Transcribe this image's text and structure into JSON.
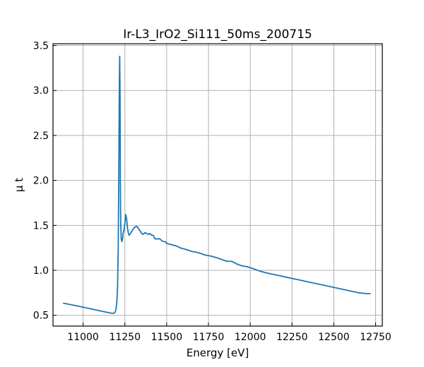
{
  "chart_data": {
    "type": "line",
    "title": "Ir-L3_IrO2_Si111_50ms_200715",
    "xlabel": "Energy [eV]",
    "ylabel": "μ t",
    "xlim": [
      10820,
      12790
    ],
    "ylim": [
      0.38,
      3.52
    ],
    "xticks": [
      11000,
      11250,
      11500,
      11750,
      12000,
      12250,
      12500,
      12750
    ],
    "yticks": [
      0.5,
      1.0,
      1.5,
      2.0,
      2.5,
      3.0,
      3.5
    ],
    "grid": true,
    "series": [
      {
        "name": "",
        "color": "#1f77b4",
        "x": [
          10880,
          10950,
          11000,
          11050,
          11100,
          11150,
          11175,
          11185,
          11192,
          11197,
          11202,
          11206,
          11210,
          11213,
          11215,
          11217,
          11219,
          11221,
          11223,
          11225,
          11228,
          11232,
          11236,
          11240,
          11245,
          11250,
          11255,
          11260,
          11265,
          11270,
          11275,
          11280,
          11290,
          11300,
          11310,
          11320,
          11330,
          11340,
          11350,
          11360,
          11370,
          11380,
          11390,
          11400,
          11410,
          11420,
          11430,
          11440,
          11450,
          11460,
          11470,
          11480,
          11490,
          11500,
          11520,
          11540,
          11560,
          11580,
          11600,
          11620,
          11650,
          11680,
          11700,
          11730,
          11760,
          11780,
          11800,
          11830,
          11860,
          11890,
          11920,
          11950,
          11980,
          12000,
          12030,
          12060,
          12100,
          12150,
          12200,
          12250,
          12300,
          12350,
          12400,
          12450,
          12500,
          12550,
          12600,
          12650,
          12700,
          12720
        ],
        "y": [
          0.635,
          0.61,
          0.59,
          0.57,
          0.55,
          0.53,
          0.522,
          0.523,
          0.535,
          0.57,
          0.65,
          0.8,
          1.2,
          1.9,
          2.5,
          3.1,
          3.38,
          3.0,
          2.0,
          1.55,
          1.35,
          1.32,
          1.35,
          1.42,
          1.45,
          1.52,
          1.62,
          1.58,
          1.48,
          1.42,
          1.39,
          1.4,
          1.43,
          1.46,
          1.48,
          1.49,
          1.47,
          1.44,
          1.41,
          1.4,
          1.42,
          1.41,
          1.4,
          1.41,
          1.39,
          1.39,
          1.35,
          1.35,
          1.35,
          1.35,
          1.33,
          1.32,
          1.32,
          1.3,
          1.29,
          1.28,
          1.27,
          1.25,
          1.24,
          1.23,
          1.21,
          1.2,
          1.19,
          1.17,
          1.16,
          1.15,
          1.14,
          1.12,
          1.1,
          1.1,
          1.07,
          1.05,
          1.04,
          1.03,
          1.01,
          0.99,
          0.97,
          0.95,
          0.93,
          0.91,
          0.89,
          0.87,
          0.85,
          0.83,
          0.81,
          0.79,
          0.77,
          0.75,
          0.74,
          0.74
        ]
      }
    ]
  }
}
